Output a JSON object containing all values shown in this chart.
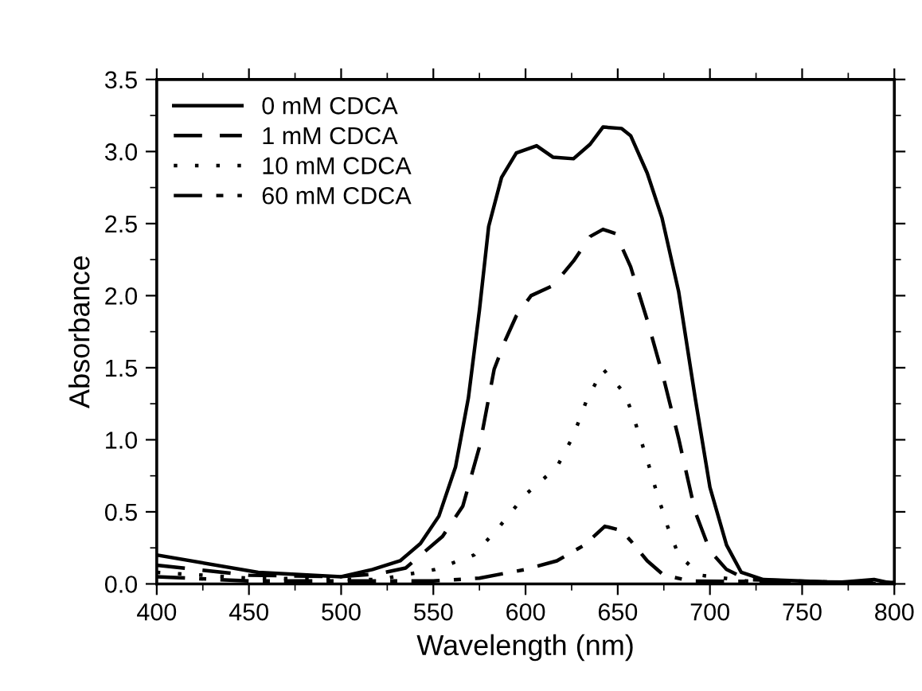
{
  "chart_data": {
    "type": "line",
    "xlabel": "Wavelength (nm)",
    "ylabel": "Absorbance",
    "xlim": [
      400,
      800
    ],
    "ylim": [
      0,
      3.5
    ],
    "xticks": [
      400,
      450,
      500,
      550,
      600,
      650,
      700,
      750,
      800
    ],
    "yticks": [
      {
        "value": 0,
        "label": "0.0"
      },
      0.5,
      {
        "value": 1,
        "label": "1.0"
      },
      1.5,
      {
        "value": 2,
        "label": "2.0"
      },
      2.5,
      {
        "value": 3,
        "label": "3.0"
      },
      3.5
    ],
    "grid": false,
    "legend": "top left",
    "marker": "none",
    "series": [
      {
        "name": "0 mM CDCA",
        "color": "#000000",
        "line_style": "solid",
        "x": [
          400,
          455,
          500,
          517,
          532,
          543,
          553,
          562,
          569,
          575,
          580,
          587,
          595,
          606,
          615,
          626,
          635,
          642,
          652,
          657,
          666,
          674,
          683,
          692,
          700,
          709,
          717,
          729,
          769,
          789,
          800
        ],
        "values": [
          0.2,
          0.08,
          0.05,
          0.1,
          0.16,
          0.28,
          0.47,
          0.81,
          1.29,
          1.9,
          2.48,
          2.82,
          2.99,
          3.04,
          2.96,
          2.95,
          3.05,
          3.17,
          3.16,
          3.11,
          2.85,
          2.54,
          2.03,
          1.29,
          0.67,
          0.27,
          0.08,
          0.03,
          0.01,
          0.03,
          0.0
        ]
      },
      {
        "name": "1 mM CDCA",
        "color": "#000000",
        "line_style": "dashed",
        "x": [
          400,
          450,
          500,
          520,
          535,
          555,
          566,
          575,
          583,
          589,
          595,
          603,
          615,
          626,
          635,
          642,
          649,
          657,
          666,
          675,
          683,
          692,
          700,
          709,
          720,
          800
        ],
        "values": [
          0.13,
          0.06,
          0.05,
          0.07,
          0.11,
          0.33,
          0.54,
          0.95,
          1.49,
          1.69,
          1.86,
          2.0,
          2.07,
          2.24,
          2.41,
          2.46,
          2.43,
          2.2,
          1.83,
          1.42,
          1.01,
          0.5,
          0.23,
          0.1,
          0.03,
          0.0
        ]
      },
      {
        "name": "10 mM CDCA",
        "color": "#000000",
        "line_style": "dotted",
        "x": [
          400,
          450,
          520,
          551,
          572,
          586,
          600,
          617,
          626,
          633,
          642,
          654,
          660,
          666,
          671,
          677,
          683,
          695,
          720,
          800
        ],
        "values": [
          0.08,
          0.04,
          0.03,
          0.1,
          0.2,
          0.4,
          0.62,
          0.81,
          1.03,
          1.27,
          1.49,
          1.32,
          1.1,
          0.86,
          0.64,
          0.4,
          0.2,
          0.06,
          0.02,
          0.0
        ]
      },
      {
        "name": "60 mM CDCA",
        "color": "#000000",
        "line_style": "dashdot",
        "x": [
          400,
          450,
          550,
          575,
          600,
          617,
          632,
          643,
          652,
          657,
          666,
          675,
          690,
          800
        ],
        "values": [
          0.05,
          0.02,
          0.02,
          0.04,
          0.1,
          0.16,
          0.27,
          0.4,
          0.37,
          0.3,
          0.16,
          0.06,
          0.02,
          0.01
        ]
      }
    ]
  }
}
